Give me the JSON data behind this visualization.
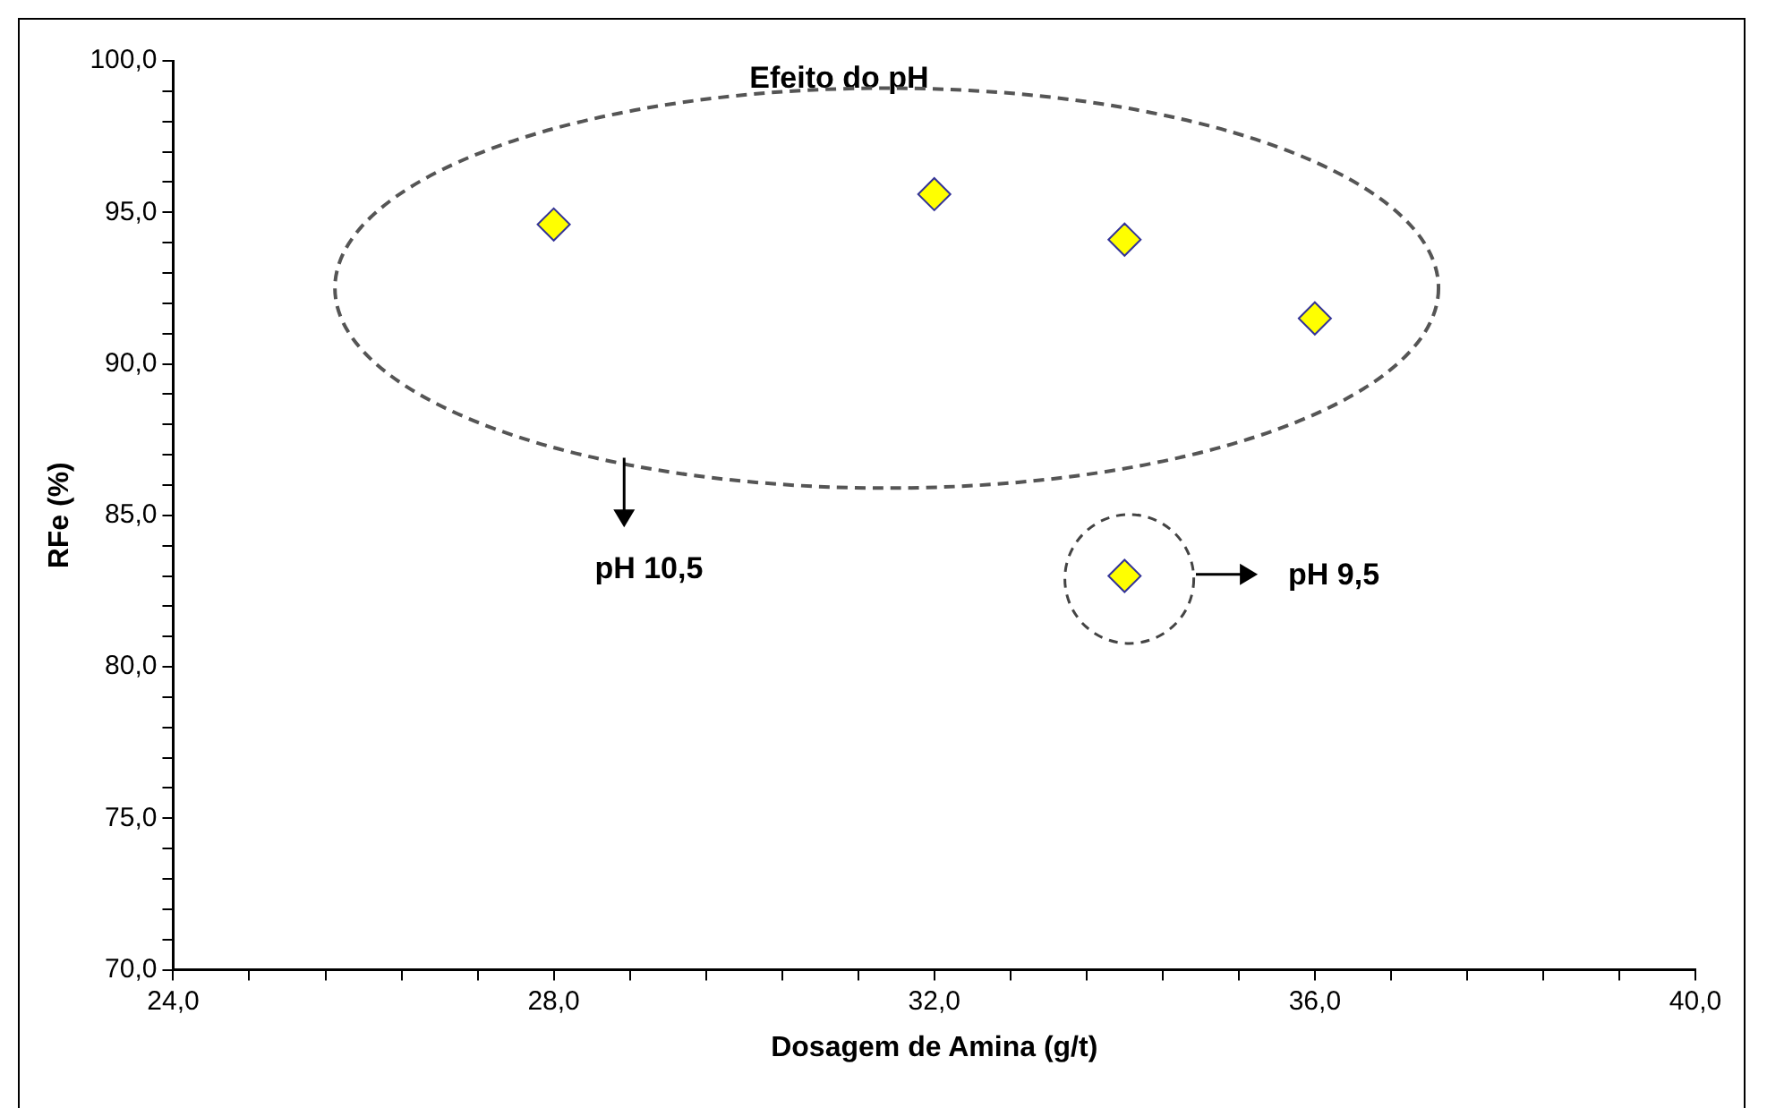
{
  "chart_data": {
    "type": "scatter",
    "xlabel": "Dosagem de Amina (g/t)",
    "ylabel": "RFe (%)",
    "series": [
      {
        "color": "#ffff00",
        "x": [
          28,
          32,
          34,
          36,
          34
        ],
        "values": [
          94.6,
          95.6,
          94.1,
          91.5,
          83.0
        ]
      }
    ],
    "marker": "diamond",
    "grid": false,
    "legend": false,
    "xlim": [
      24,
      40
    ],
    "ylim": [
      70,
      100
    ],
    "xticks": [
      {
        "value": 24,
        "label": "24,0"
      },
      {
        "value": 24.8,
        "label": null
      },
      {
        "value": 25.6,
        "label": null
      },
      {
        "value": 26.4,
        "label": null
      },
      {
        "value": 27.2,
        "label": null
      },
      {
        "value": 28,
        "label": "28,0"
      },
      {
        "value": 28.8,
        "label": null
      },
      {
        "value": 29.6,
        "label": null
      },
      {
        "value": 30.4,
        "label": null
      },
      {
        "value": 31.2,
        "label": null
      },
      {
        "value": 32,
        "label": "32,0"
      },
      {
        "value": 32.8,
        "label": null
      },
      {
        "value": 33.6,
        "label": null
      },
      {
        "value": 34.4,
        "label": null
      },
      {
        "value": 35.2,
        "label": null
      },
      {
        "value": 36,
        "label": "36,0"
      },
      {
        "value": 36.8,
        "label": null
      },
      {
        "value": 37.6,
        "label": null
      },
      {
        "value": 38.4,
        "label": null
      },
      {
        "value": 39.2,
        "label": null
      },
      {
        "value": 40,
        "label": "40,0"
      }
    ],
    "yticks": [
      {
        "value": 70,
        "label": "70,0"
      },
      {
        "value": 71,
        "label": null
      },
      {
        "value": 72,
        "label": null
      },
      {
        "value": 73,
        "label": null
      },
      {
        "value": 74,
        "label": null
      },
      {
        "value": 75,
        "label": "75,0"
      },
      {
        "value": 76,
        "label": null
      },
      {
        "value": 77,
        "label": null
      },
      {
        "value": 78,
        "label": null
      },
      {
        "value": 79,
        "label": null
      },
      {
        "value": 80,
        "label": "80,0"
      },
      {
        "value": 81,
        "label": null
      },
      {
        "value": 82,
        "label": null
      },
      {
        "value": 83,
        "label": null
      },
      {
        "value": 84,
        "label": null
      },
      {
        "value": 85,
        "label": "85,0"
      },
      {
        "value": 86,
        "label": null
      },
      {
        "value": 87,
        "label": null
      },
      {
        "value": 88,
        "label": null
      },
      {
        "value": 89,
        "label": null
      },
      {
        "value": 90,
        "label": "90,0"
      },
      {
        "value": 91,
        "label": null
      },
      {
        "value": 92,
        "label": null
      },
      {
        "value": 93,
        "label": null
      },
      {
        "value": 94,
        "label": null
      },
      {
        "value": 95,
        "label": "95,0"
      },
      {
        "value": 96,
        "label": null
      },
      {
        "value": 97,
        "label": null
      },
      {
        "value": 98,
        "label": null
      },
      {
        "value": 99,
        "label": null
      },
      {
        "value": 100,
        "label": "100,0"
      }
    ],
    "annotations": [
      "Efeito do pH",
      "pH 10,5",
      "pH 9,5"
    ]
  }
}
